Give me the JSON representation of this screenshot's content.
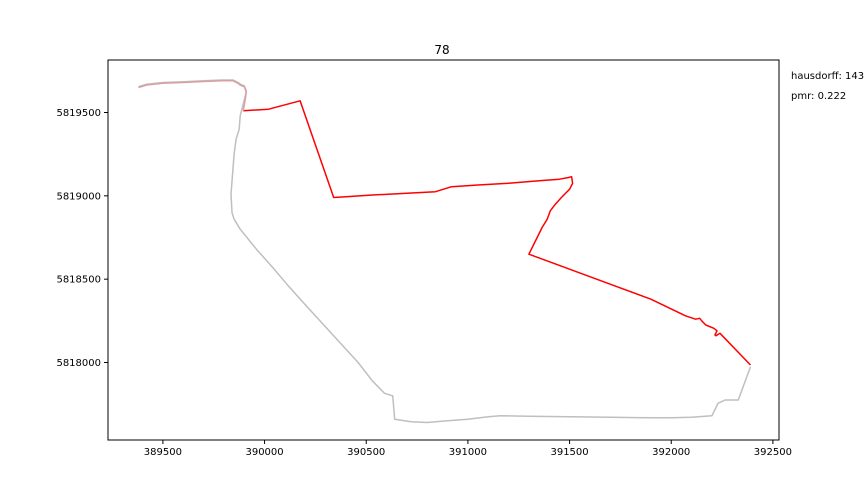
{
  "chart_data": {
    "type": "line",
    "title": "78",
    "xlabel": "",
    "ylabel": "",
    "xlim": [
      389230,
      392530
    ],
    "ylim": [
      5817535,
      5819815
    ],
    "grid": false,
    "x_ticks": [
      389500,
      390000,
      390500,
      391000,
      391500,
      392000,
      392500
    ],
    "y_ticks": [
      5818000,
      5818500,
      5819000,
      5819500
    ],
    "annotations": [
      {
        "name": "hausdorff",
        "text": "hausdorff: 143"
      },
      {
        "name": "pmr",
        "text": "pmr: 0.222"
      }
    ],
    "colors": {
      "route_red": "#ff0000",
      "route_gray": "#bfbfbf",
      "route_overlap": "#d9a0a0"
    },
    "series": [
      {
        "name": "gray-track",
        "color": "#bfbfbf",
        "x": [
          389380,
          389420,
          389500,
          389600,
          389700,
          389790,
          389845,
          389870,
          389880,
          389900,
          389910,
          389905,
          389895,
          389880,
          389875,
          389860,
          389850,
          389835,
          389840,
          389850,
          389880,
          389960,
          390040,
          390110,
          390190,
          390280,
          390370,
          390460,
          390530,
          390590,
          390630,
          390640,
          390720,
          390800,
          390900,
          391000,
          391100,
          391160,
          391300,
          391500,
          391700,
          391900,
          392000,
          392100,
          392200,
          392230,
          392265,
          392330,
          392390
        ],
        "y": [
          5819655,
          5819670,
          5819680,
          5819685,
          5819690,
          5819695,
          5819695,
          5819680,
          5819670,
          5819660,
          5819630,
          5819600,
          5819550,
          5819480,
          5819400,
          5819340,
          5819250,
          5819010,
          5818900,
          5818860,
          5818800,
          5818680,
          5818570,
          5818470,
          5818360,
          5818240,
          5818120,
          5818000,
          5817890,
          5817815,
          5817800,
          5817660,
          5817645,
          5817640,
          5817650,
          5817660,
          5817675,
          5817680,
          5817678,
          5817675,
          5817672,
          5817668,
          5817668,
          5817672,
          5817680,
          5817755,
          5817775,
          5817775,
          5817975
        ]
      },
      {
        "name": "red-track",
        "color": "#ff0000",
        "x": [
          389895,
          390020,
          390175,
          390340,
          390400,
          390530,
          390700,
          390840,
          390920,
          391050,
          391200,
          391350,
          391450,
          391495,
          391510,
          391515,
          391500,
          391460,
          391430,
          391405,
          391390,
          391365,
          391300,
          391500,
          391700,
          391900,
          392070,
          392120,
          392140,
          392150,
          392170,
          392210,
          392225,
          392215,
          392220,
          392240,
          392390
        ],
        "y": [
          5819510,
          5819520,
          5819570,
          5818990,
          5818995,
          5819005,
          5819015,
          5819025,
          5819055,
          5819065,
          5819075,
          5819090,
          5819100,
          5819110,
          5819115,
          5819075,
          5819040,
          5818990,
          5818950,
          5818910,
          5818860,
          5818810,
          5818650,
          5818560,
          5818470,
          5818380,
          5818280,
          5818260,
          5818265,
          5818250,
          5818225,
          5818205,
          5818190,
          5818165,
          5818160,
          5818175,
          5817985
        ]
      },
      {
        "name": "overlap-track",
        "color": "#d9a0a0",
        "x": [
          389380,
          389420,
          389500,
          389600,
          389700,
          389790,
          389845,
          389870,
          389880,
          389900,
          389910,
          389905,
          389895
        ],
        "y": [
          5819650,
          5819665,
          5819675,
          5819680,
          5819686,
          5819690,
          5819690,
          5819675,
          5819665,
          5819655,
          5819625,
          5819580,
          5819510
        ]
      }
    ]
  }
}
